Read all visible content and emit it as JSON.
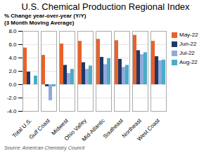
{
  "chart_data": {
    "type": "bar",
    "title": "U.S. Chemical Production Regional Index",
    "ylabel": "% Change year-over-year (Y/Y)",
    "subtitle": "(3 Month Moving Average)",
    "source": "Source: American Chemistry Council",
    "categories": [
      "Total U.S.",
      "Gulf Coast",
      "Midwest",
      "Ohio Valley",
      "Mid-Atlantic",
      "Southeast",
      "Northeast",
      "West Coast"
    ],
    "series": [
      {
        "name": "May-22",
        "color": "#E8622A",
        "values": [
          5.5,
          4.4,
          6.1,
          6.5,
          6.8,
          6.6,
          7.4,
          6.5
        ]
      },
      {
        "name": "Jun-22",
        "color": "#1F3864",
        "values": [
          1.9,
          -0.3,
          2.9,
          3.3,
          4.1,
          3.8,
          5.1,
          4.2
        ]
      },
      {
        "name": "Jul-22",
        "color": "#8FAADC",
        "values": [
          0.0,
          -2.4,
          1.7,
          2.3,
          3.0,
          2.6,
          4.5,
          3.6
        ]
      },
      {
        "name": "Aug-22",
        "color": "#4BACC6",
        "values": [
          1.3,
          -0.3,
          2.3,
          2.8,
          3.9,
          2.9,
          4.8,
          3.7
        ]
      }
    ],
    "ylim": [
      -4.0,
      8.0
    ],
    "yticks": [
      {
        "value": -4.0,
        "label": "-4.0"
      },
      {
        "value": -2.0,
        "label": "-2.0"
      },
      {
        "value": 0.0,
        "label": "0.0"
      },
      {
        "value": 2.0,
        "label": "2.0"
      },
      {
        "value": 4.0,
        "label": "4.0"
      },
      {
        "value": 6.0,
        "label": "6.0"
      },
      {
        "value": 8.0,
        "label": "8.0"
      }
    ],
    "grid": true,
    "legend": "right"
  }
}
